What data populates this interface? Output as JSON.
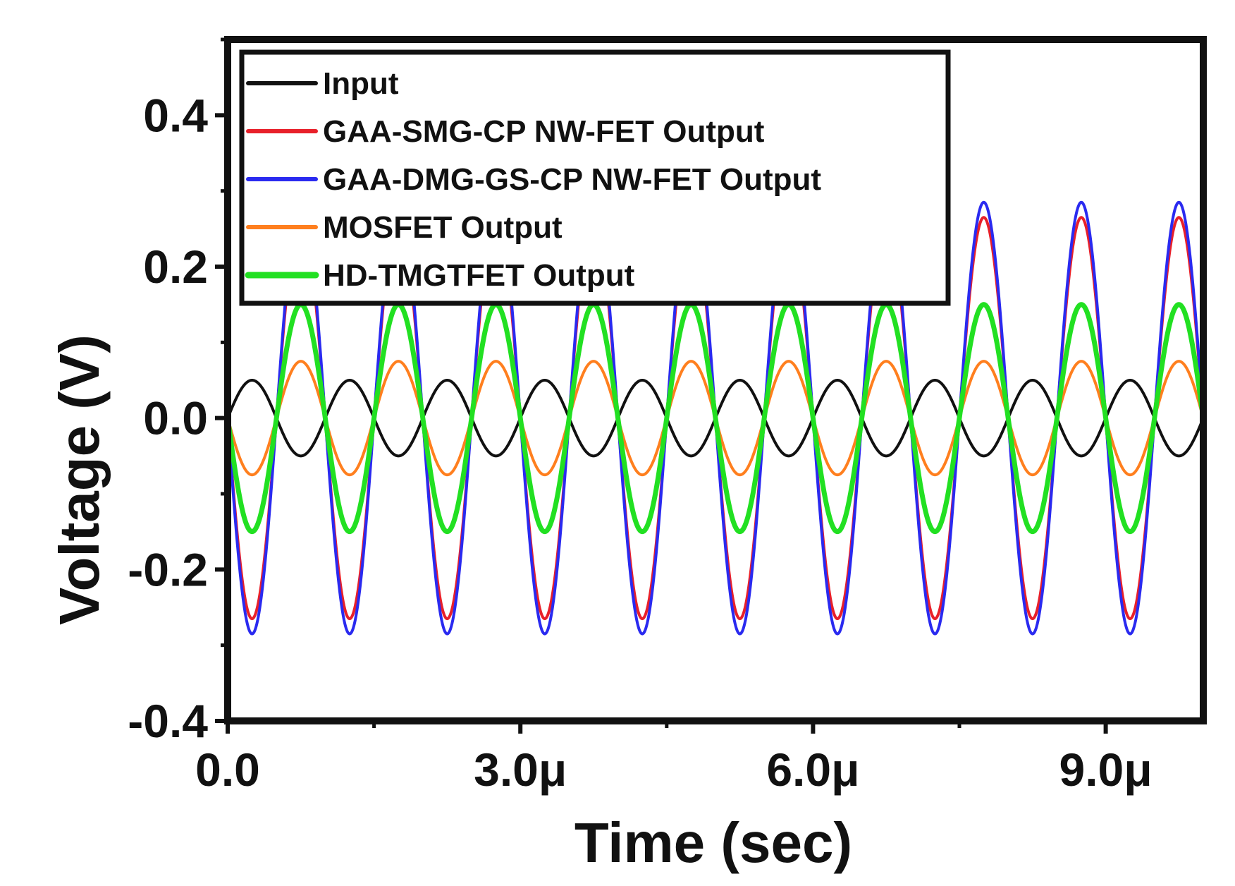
{
  "chart_data": {
    "type": "line",
    "title": "",
    "xlabel": "Time (sec)",
    "ylabel": "Voltage (V)",
    "xlim": [
      0,
      1e-05
    ],
    "ylim": [
      -0.4,
      0.5
    ],
    "x_ticks": [
      {
        "value": 0,
        "label": "0.0"
      },
      {
        "value": 3e-06,
        "label": "3.0μ"
      },
      {
        "value": 6e-06,
        "label": "6.0μ"
      },
      {
        "value": 9e-06,
        "label": "9.0μ"
      }
    ],
    "x_minor_ticks": [
      1.5e-06,
      4.5e-06,
      7.5e-06
    ],
    "y_ticks": [
      {
        "value": -0.4,
        "label": "-0.4"
      },
      {
        "value": -0.2,
        "label": "-0.2"
      },
      {
        "value": 0.0,
        "label": "0.0"
      },
      {
        "value": 0.2,
        "label": "0.2"
      },
      {
        "value": 0.4,
        "label": "0.4"
      }
    ],
    "y_minor_ticks": [
      -0.3,
      -0.1,
      0.1,
      0.3,
      0.5
    ],
    "grid": false,
    "legend_position": "top-left",
    "signal": {
      "period": 1e-06,
      "x_start": 0,
      "x_end": 1e-05
    },
    "series": [
      {
        "name": "Input",
        "color": "#111111",
        "amplitude": 0.05,
        "phase_sign": 1,
        "line_width": 4
      },
      {
        "name": "GAA-SMG-CP NW-FET Output",
        "color": "#e8202a",
        "amplitude": 0.265,
        "phase_sign": -1,
        "line_width": 4
      },
      {
        "name": "GAA-DMG-GS-CP NW-FET Output",
        "color": "#2a2af0",
        "amplitude": 0.285,
        "phase_sign": -1,
        "line_width": 4
      },
      {
        "name": "MOSFET Output",
        "color": "#ff7f1e",
        "amplitude": 0.075,
        "phase_sign": -1,
        "line_width": 4
      },
      {
        "name": "HD-TMGTFET Output",
        "color": "#22e022",
        "amplitude": 0.15,
        "phase_sign": -1,
        "line_width": 7
      }
    ]
  }
}
